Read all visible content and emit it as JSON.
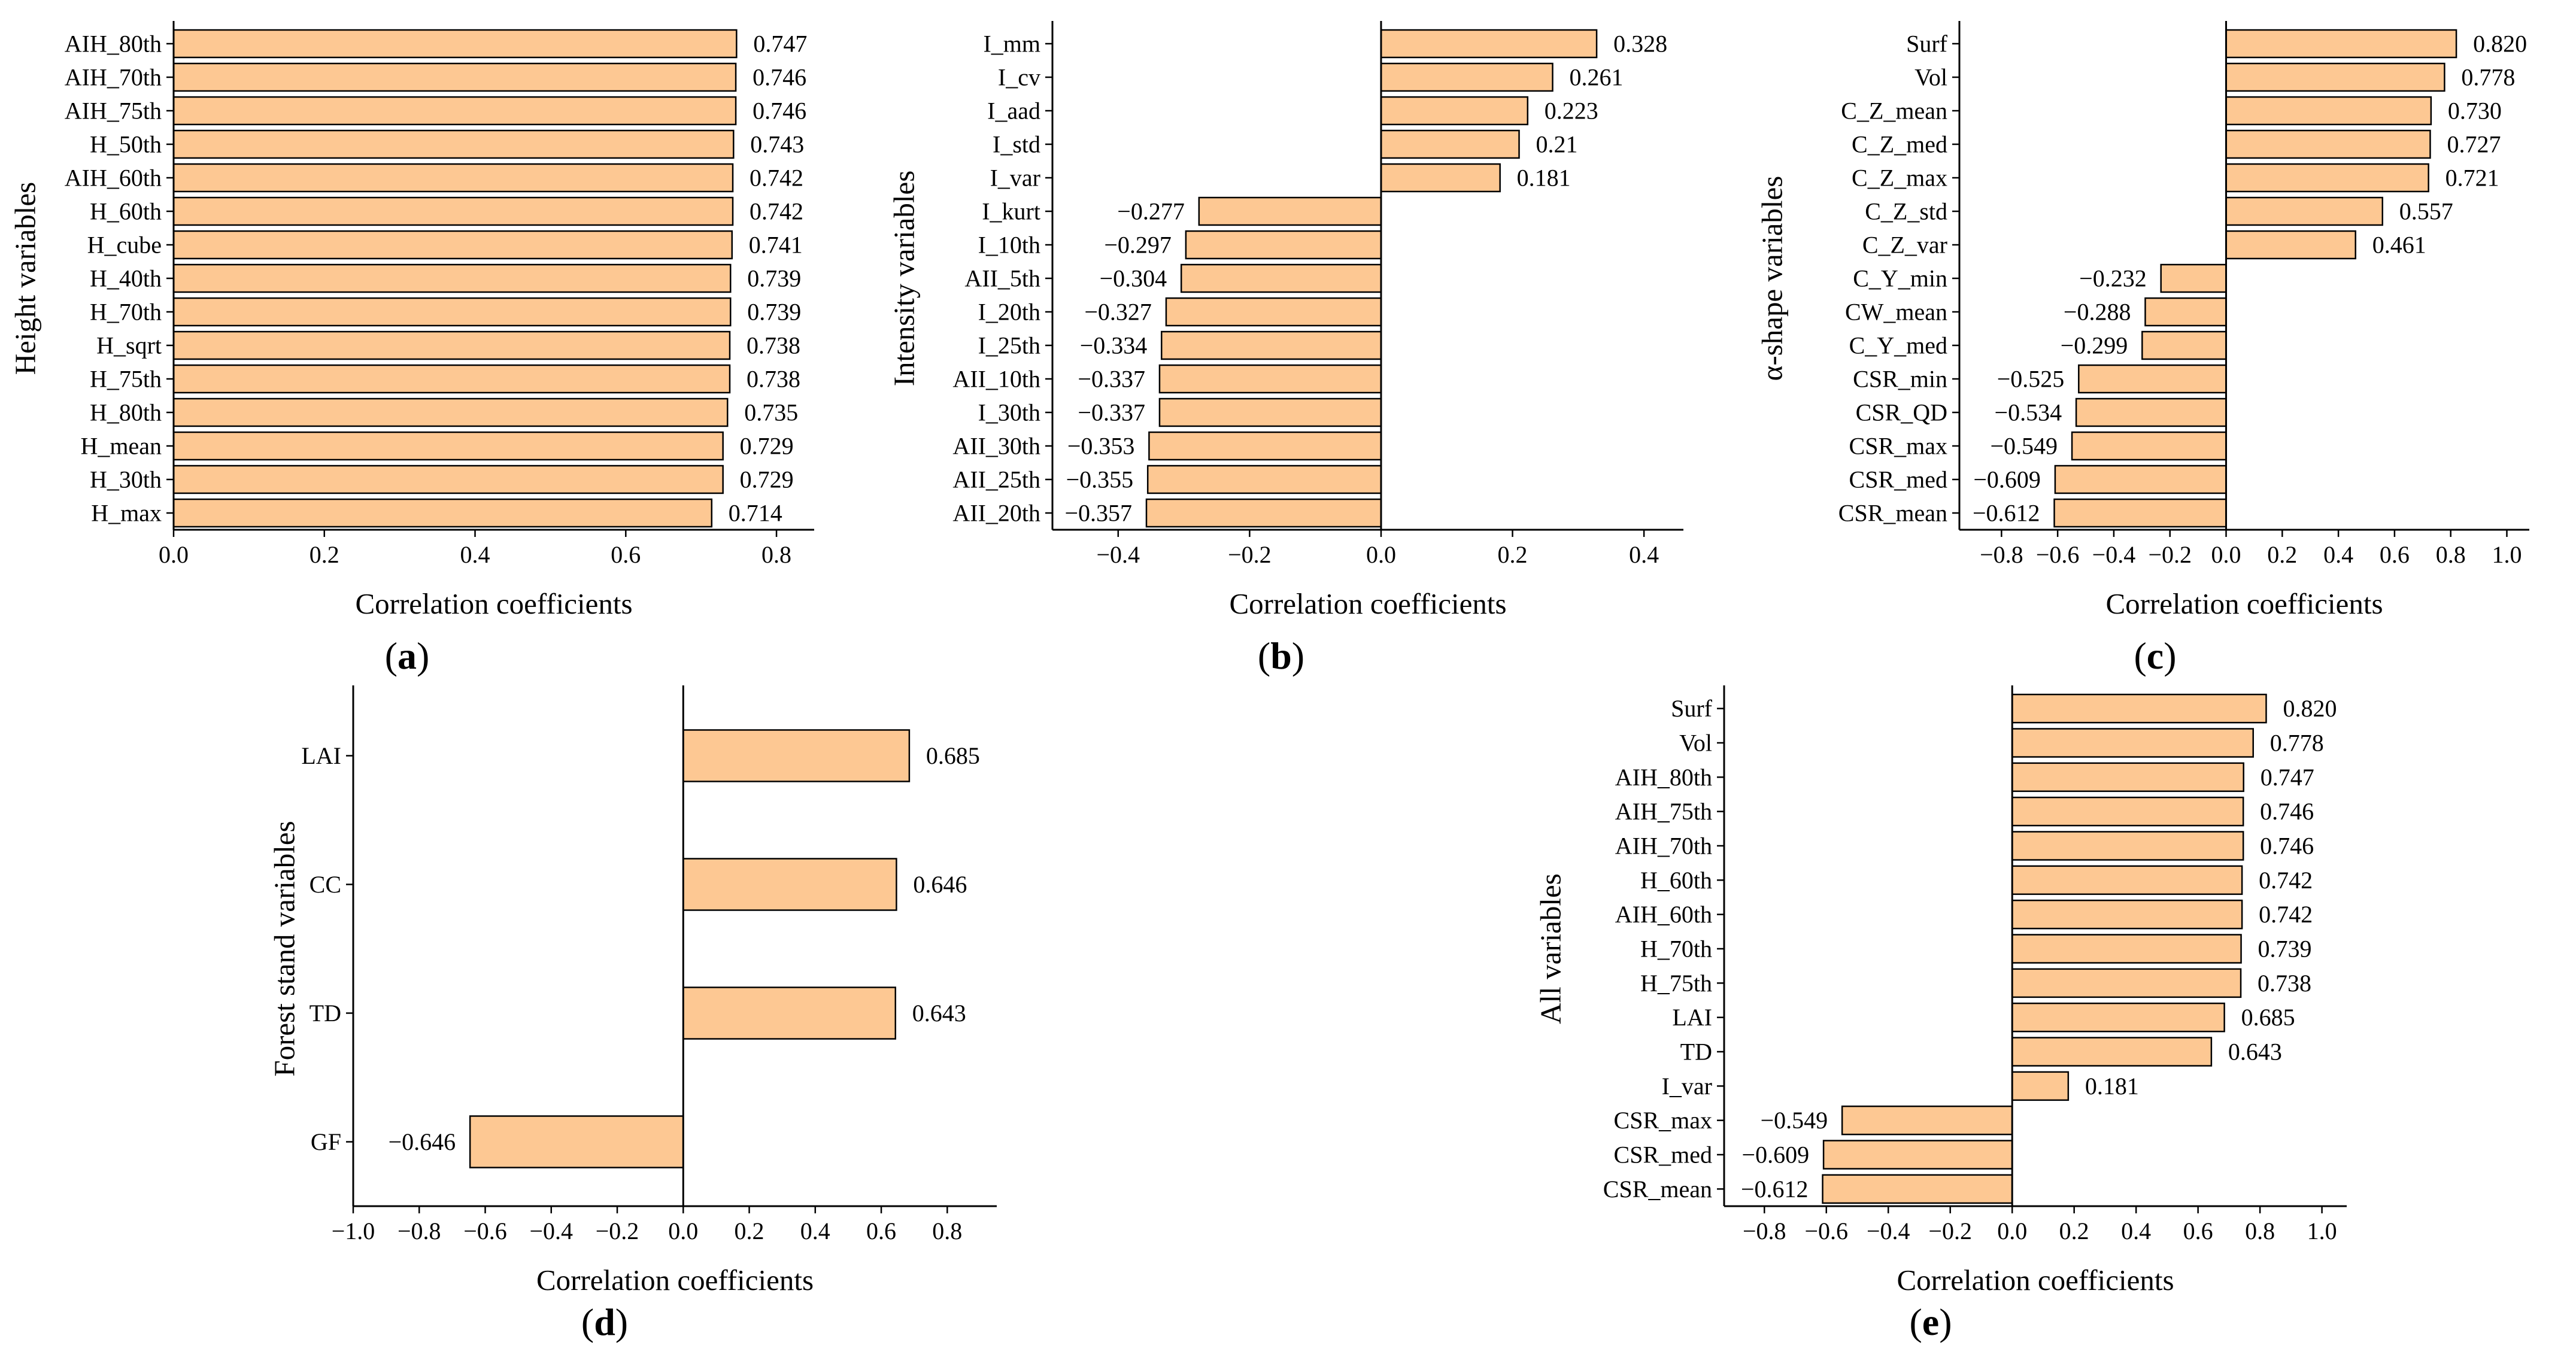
{
  "style": {
    "bar_fill": "#FDC893",
    "bar_stroke": "#000000",
    "axis_color": "#000000"
  },
  "chart_data": [
    {
      "id": "a",
      "panel_label": "(a)",
      "type": "bar",
      "orientation": "horizontal",
      "xlabel": "Correlation coefficients",
      "ylabel": "Height variables",
      "xlim": [
        0.0,
        0.85
      ],
      "xticks": [
        0.0,
        0.2,
        0.4,
        0.6,
        0.8
      ],
      "xtick_labels": [
        "0.0",
        "0.2",
        "0.4",
        "0.6",
        "0.8"
      ],
      "categories": [
        "AIH_80th",
        "AIH_70th",
        "AIH_75th",
        "H_50th",
        "AIH_60th",
        "H_60th",
        "H_cube",
        "H_40th",
        "H_70th",
        "H_sqrt",
        "H_75th",
        "H_80th",
        "H_mean",
        "H_30th",
        "H_max"
      ],
      "values": [
        0.747,
        0.746,
        0.746,
        0.743,
        0.742,
        0.742,
        0.741,
        0.739,
        0.739,
        0.738,
        0.738,
        0.735,
        0.729,
        0.729,
        0.714
      ],
      "value_labels": [
        "0.747",
        "0.746",
        "0.746",
        "0.743",
        "0.742",
        "0.742",
        "0.741",
        "0.739",
        "0.739",
        "0.738",
        "0.738",
        "0.735",
        "0.729",
        "0.729",
        "0.714"
      ]
    },
    {
      "id": "b",
      "panel_label": "(b)",
      "type": "bar",
      "orientation": "horizontal",
      "xlabel": "Correlation coefficients",
      "ylabel": "Intensity variables",
      "xlim": [
        -0.5,
        0.46
      ],
      "xticks": [
        -0.4,
        -0.2,
        0.0,
        0.2,
        0.4
      ],
      "xtick_labels": [
        "−0.4",
        "−0.2",
        "0.0",
        "0.2",
        "0.4"
      ],
      "categories": [
        "I_mm",
        "I_cv",
        "I_aad",
        "I_std",
        "I_var",
        "I_kurt",
        "I_10th",
        "AII_5th",
        "I_20th",
        "I_25th",
        "AII_10th",
        "I_30th",
        "AII_30th",
        "AII_25th",
        "AII_20th"
      ],
      "values": [
        0.328,
        0.261,
        0.223,
        0.21,
        0.181,
        -0.277,
        -0.297,
        -0.304,
        -0.327,
        -0.334,
        -0.337,
        -0.337,
        -0.353,
        -0.355,
        -0.357
      ],
      "value_labels": [
        "0.328",
        "0.261",
        "0.223",
        "0.21",
        "0.181",
        "−0.277",
        "−0.297",
        "−0.304",
        "−0.327",
        "−0.334",
        "−0.337",
        "−0.337",
        "−0.353",
        "−0.355",
        "−0.357"
      ]
    },
    {
      "id": "c",
      "panel_label": "(c)",
      "type": "bar",
      "orientation": "horizontal",
      "xlabel": "Correlation coefficients",
      "ylabel": "α-shape variables",
      "xlim": [
        -0.95,
        1.08
      ],
      "xticks": [
        -0.8,
        -0.6,
        -0.4,
        -0.2,
        0.0,
        0.2,
        0.4,
        0.6,
        0.8,
        1.0
      ],
      "xtick_labels": [
        "−0.8",
        "−0.6",
        "−0.4",
        "−0.2",
        "0.0",
        "0.2",
        "0.4",
        "0.6",
        "0.8",
        "1.0"
      ],
      "categories": [
        "Surf",
        "Vol",
        "C_Z_mean",
        "C_Z_med",
        "C_Z_max",
        "C_Z_std",
        "C_Z_var",
        "C_Y_min",
        "CW_mean",
        "C_Y_med",
        "CSR_min",
        "CSR_QD",
        "CSR_max",
        "CSR_med",
        "CSR_mean"
      ],
      "values": [
        0.82,
        0.778,
        0.73,
        0.727,
        0.721,
        0.557,
        0.461,
        -0.232,
        -0.288,
        -0.299,
        -0.525,
        -0.534,
        -0.549,
        -0.609,
        -0.612
      ],
      "value_labels": [
        "0.820",
        "0.778",
        "0.730",
        "0.727",
        "0.721",
        "0.557",
        "0.461",
        "−0.232",
        "−0.288",
        "−0.299",
        "−0.525",
        "−0.534",
        "−0.549",
        "−0.609",
        "−0.612"
      ]
    },
    {
      "id": "d",
      "panel_label": "(d)",
      "type": "bar",
      "orientation": "horizontal",
      "xlabel": "Correlation coefficients",
      "ylabel": "Forest stand variables",
      "xlim": [
        -1.0,
        0.95
      ],
      "xticks": [
        -1.0,
        -0.8,
        -0.6,
        -0.4,
        -0.2,
        0.0,
        0.2,
        0.4,
        0.6,
        0.8
      ],
      "xtick_labels": [
        "−1.0",
        "−0.8",
        "−0.6",
        "−0.4",
        "−0.2",
        "0.0",
        "0.2",
        "0.4",
        "0.6",
        "0.8"
      ],
      "categories": [
        "LAI",
        "CC",
        "TD",
        "GF"
      ],
      "values": [
        0.685,
        0.646,
        0.643,
        -0.646
      ],
      "value_labels": [
        "0.685",
        "0.646",
        "0.643",
        "−0.646"
      ]
    },
    {
      "id": "e",
      "panel_label": "(e)",
      "type": "bar",
      "orientation": "horizontal",
      "xlabel": "Correlation coefficients",
      "ylabel": "All variables",
      "xlim": [
        -0.93,
        1.08
      ],
      "xticks": [
        -0.8,
        -0.6,
        -0.4,
        -0.2,
        0.0,
        0.2,
        0.4,
        0.6,
        0.8,
        1.0
      ],
      "xtick_labels": [
        "−0.8",
        "−0.6",
        "−0.4",
        "−0.2",
        "0.0",
        "0.2",
        "0.4",
        "0.6",
        "0.8",
        "1.0"
      ],
      "categories": [
        "Surf",
        "Vol",
        "AIH_80th",
        "AIH_75th",
        "AIH_70th",
        "H_60th",
        "AIH_60th",
        "H_70th",
        "H_75th",
        "LAI",
        "TD",
        "I_var",
        "CSR_max",
        "CSR_med",
        "CSR_mean"
      ],
      "values": [
        0.82,
        0.778,
        0.747,
        0.746,
        0.746,
        0.742,
        0.742,
        0.739,
        0.738,
        0.685,
        0.643,
        0.181,
        -0.549,
        -0.609,
        -0.612
      ],
      "value_labels": [
        "0.820",
        "0.778",
        "0.747",
        "0.746",
        "0.746",
        "0.742",
        "0.742",
        "0.739",
        "0.738",
        "0.685",
        "0.643",
        "0.181",
        "−0.549",
        "−0.609",
        "−0.612"
      ]
    }
  ]
}
